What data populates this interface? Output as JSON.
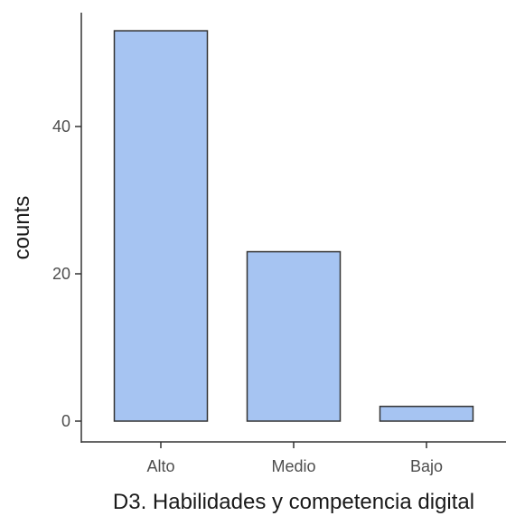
{
  "chart_data": {
    "type": "bar",
    "categories": [
      "Alto",
      "Medio",
      "Bajo"
    ],
    "values": [
      53,
      23,
      2
    ],
    "title": "",
    "xlabel": "D3. Habilidades y competencia digital",
    "ylabel": "counts",
    "ylim": [
      0,
      55
    ],
    "yticks": [
      0,
      20,
      40
    ],
    "bar_color": "#a6c4f2",
    "bar_border_color": "#333333",
    "grid": false,
    "legend": "none"
  }
}
